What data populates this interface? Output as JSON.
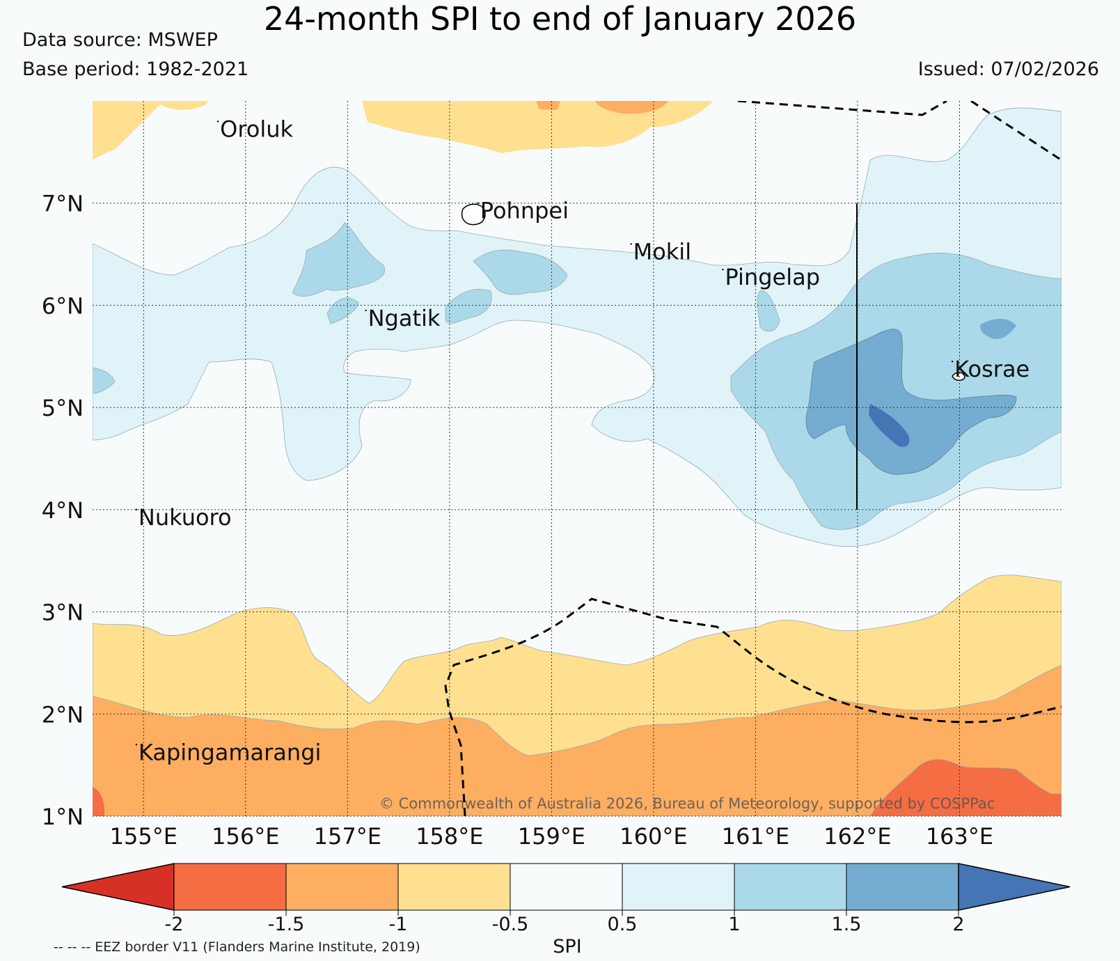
{
  "header": {
    "title": "24-month SPI to end of January 2026",
    "data_source": "Data source: MSWEP",
    "base_period": "Base period: 1982-2021",
    "issued": "Issued: 07/02/2026"
  },
  "map": {
    "lon_range": [
      154.5,
      164.0
    ],
    "lat_range": [
      1.0,
      8.0
    ],
    "lon_ticks": [
      {
        "value": 155,
        "label": "155°E"
      },
      {
        "value": 156,
        "label": "156°E"
      },
      {
        "value": 157,
        "label": "157°E"
      },
      {
        "value": 158,
        "label": "158°E"
      },
      {
        "value": 159,
        "label": "159°E"
      },
      {
        "value": 160,
        "label": "160°E"
      },
      {
        "value": 161,
        "label": "161°E"
      },
      {
        "value": 162,
        "label": "162°E"
      },
      {
        "value": 163,
        "label": "163°E"
      }
    ],
    "lat_ticks": [
      {
        "value": 1,
        "label": "1°N"
      },
      {
        "value": 2,
        "label": "2°N"
      },
      {
        "value": 3,
        "label": "3°N"
      },
      {
        "value": 4,
        "label": "4°N"
      },
      {
        "value": 5,
        "label": "5°N"
      },
      {
        "value": 6,
        "label": "6°N"
      },
      {
        "value": 7,
        "label": "7°N"
      }
    ],
    "places": [
      {
        "name": "Oroluk",
        "lon": 155.75,
        "lat": 7.65
      },
      {
        "name": "Pohnpei",
        "lon": 158.3,
        "lat": 6.85
      },
      {
        "name": "Mokil",
        "lon": 159.8,
        "lat": 6.45
      },
      {
        "name": "Pingelap",
        "lon": 160.7,
        "lat": 6.2
      },
      {
        "name": "Ngatik",
        "lon": 157.2,
        "lat": 5.8
      },
      {
        "name": "Kosrae",
        "lon": 162.95,
        "lat": 5.3
      },
      {
        "name": "Nukuoro",
        "lon": 154.95,
        "lat": 3.85
      },
      {
        "name": "Kapingamarangi",
        "lon": 154.95,
        "lat": 1.55
      }
    ],
    "copyright": "© Commonwealth of Australia 2026, Bureau of Meteorology, supported by COSPPac"
  },
  "colorbar": {
    "label": "SPI",
    "ticks": [
      "-2",
      "-1.5",
      "-1",
      "-0.5",
      "0.5",
      "1",
      "1.5",
      "2"
    ],
    "colors": [
      "#d73027",
      "#f46d43",
      "#fdae61",
      "#fee090",
      "#f7fbfc",
      "#e0f3f8",
      "#abd9e9",
      "#74add1",
      "#4575b4"
    ],
    "eez_note": "-- -- -- EEZ border V11 (Flanders Marine Institute, 2019)"
  }
}
